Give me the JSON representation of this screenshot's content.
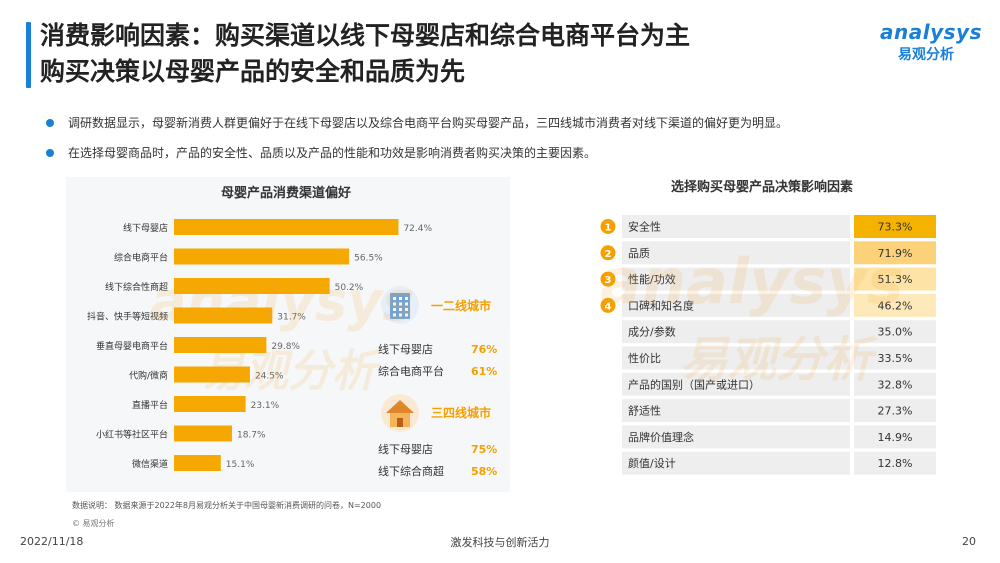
{
  "header": {
    "title_line1": "消费影响因素：购买渠道以线下母婴店和综合电商平台为主",
    "title_line2": "购买决策以母婴产品的安全和品质为先",
    "logo_en": "analysys",
    "logo_cn": "易观分析"
  },
  "bullets": [
    "调研数据显示，母婴新消费人群更偏好于在线下母婴店以及综合电商平台购买母婴产品，三四线城市消费者对线下渠道的偏好更为明显。",
    "在选择母婴商品时，产品的安全性、品质以及产品的性能和功效是影响消费者购买决策的主要因素。"
  ],
  "watermark": {
    "en": "analysys",
    "cn": "易观分析"
  },
  "chart_data": [
    {
      "type": "bar",
      "title": "母婴产品消费渠道偏好",
      "orientation": "horizontal",
      "categories": [
        "线下母婴店",
        "综合电商平台",
        "线下综合性商超",
        "抖音、快手等短视频",
        "垂直母婴电商平台",
        "代购/微商",
        "直播平台",
        "小红书等社区平台",
        "微信渠道"
      ],
      "values": [
        72.4,
        56.5,
        50.2,
        31.7,
        29.8,
        24.5,
        23.1,
        18.7,
        15.1
      ],
      "labels": [
        "72.4%",
        "56.5%",
        "50.2%",
        "31.7%",
        "29.8%",
        "24.5%",
        "23.1%",
        "18.7%",
        "15.1%"
      ],
      "bar_color": "#f5a800",
      "callouts": [
        {
          "name": "一二线城市",
          "icon": "office-building-icon",
          "rows": [
            {
              "label": "线下母婴店",
              "value": "76%"
            },
            {
              "label": "综合电商平台",
              "value": "61%"
            }
          ]
        },
        {
          "name": "三四线城市",
          "icon": "house-icon",
          "rows": [
            {
              "label": "线下母婴店",
              "value": "75%"
            },
            {
              "label": "线下综合商超",
              "value": "58%"
            }
          ]
        }
      ]
    },
    {
      "type": "table",
      "title": "选择购买母婴产品决策影响因素",
      "rows": [
        {
          "rank": "1",
          "label": "安全性",
          "value": "73.3%"
        },
        {
          "rank": "2",
          "label": "品质",
          "value": "71.9%"
        },
        {
          "rank": "3",
          "label": "性能/功效",
          "value": "51.3%"
        },
        {
          "rank": "4",
          "label": "口碑和知名度",
          "value": "46.2%"
        },
        {
          "rank": "",
          "label": "成分/参数",
          "value": "35.0%"
        },
        {
          "rank": "",
          "label": "性价比",
          "value": "33.5%"
        },
        {
          "rank": "",
          "label": "产品的国别（国产或进口）",
          "value": "32.8%"
        },
        {
          "rank": "",
          "label": "舒适性",
          "value": "27.3%"
        },
        {
          "rank": "",
          "label": "品牌价值理念",
          "value": "14.9%"
        },
        {
          "rank": "",
          "label": "颜值/设计",
          "value": "12.8%"
        }
      ],
      "highlight_colors": [
        "#f5b300",
        "#fbd27a",
        "#fde3a5",
        "#fde9ba"
      ],
      "row_color": "#eeeeee",
      "accent_color": "#f5a000"
    }
  ],
  "footer": {
    "note": "数据说明：  数据来源于2022年8月易观分析关于中国母婴新消费调研的问卷，N=2000",
    "copyright": "© 易观分析",
    "date": "2022/11/18",
    "slogan": "激发科技与创新活力",
    "page": "20"
  }
}
